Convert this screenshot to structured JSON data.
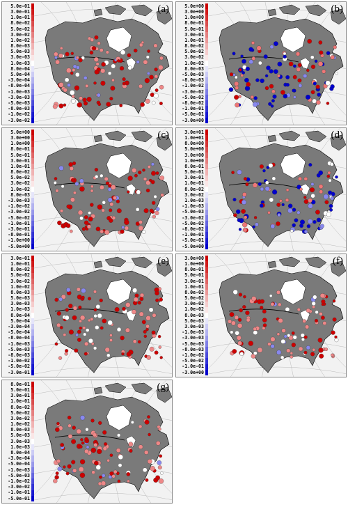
{
  "panels": [
    {
      "id": "a",
      "tag": "(a)",
      "legend": [
        "5.0e-01",
        "3.0e-01",
        "1.0e-01",
        "8.0e-02",
        "5.0e-02",
        "3.0e-02",
        "1.0e-02",
        "8.0e-03",
        "5.0e-03",
        "3.0e-03",
        "1.0e-03",
        "8.0e-04",
        "5.0e-04",
        "-3.0e-04",
        "-8.0e-04",
        "-1.0e-03",
        "-3.0e-03",
        "-5.0e-03",
        "-8.0e-03",
        "-1.0e-02",
        "-3.0e-02"
      ]
    },
    {
      "id": "b",
      "tag": "(b)",
      "legend": [
        "5.0e+00",
        "3.0e+00",
        "1.0e+00",
        "8.0e-01",
        "5.0e-01",
        "3.0e-01",
        "1.0e-01",
        "8.0e-02",
        "5.0e-02",
        "3.0e-02",
        "1.0e-02",
        "8.0e-03",
        "-5.0e-03",
        "-8.0e-03",
        "-1.0e-02",
        "-3.0e-02",
        "-5.0e-02",
        "-8.0e-02",
        "-1.0e-01",
        "-5.0e-01",
        "-3.0e+00"
      ]
    },
    {
      "id": "c",
      "tag": "(c)",
      "legend": [
        "5.0e+00",
        "3.0e+00",
        "1.0e+00",
        "8.0e-01",
        "5.0e-01",
        "3.0e-01",
        "1.0e-01",
        "8.0e-02",
        "5.0e-02",
        "3.0e-02",
        "1.0e-02",
        "8.0e-03",
        "-3.0e-03",
        "-1.0e-02",
        "-3.0e-02",
        "-5.0e-02",
        "-1.0e-01",
        "-3.0e-01",
        "-8.0e-01",
        "-1.0e+00",
        "-5.0e+00"
      ]
    },
    {
      "id": "d",
      "tag": "(d)",
      "legend": [
        "3.0e+01",
        "1.0e+01",
        "8.0e+00",
        "5.0e+00",
        "3.0e+00",
        "1.0e+00",
        "8.0e-01",
        "5.0e-01",
        "3.0e-01",
        "1.0e-01",
        "8.0e-02",
        "3.0e-02",
        "1.0e-03",
        "-1.0e-03",
        "-5.0e-03",
        "-3.0e-02",
        "-5.0e-02",
        "-8.0e-02",
        "-1.0e-01",
        "-5.0e-01",
        "-5.0e+00"
      ]
    },
    {
      "id": "e",
      "tag": "(e)",
      "legend": [
        "3.0e-01",
        "1.0e-01",
        "8.0e-02",
        "5.0e-02",
        "3.0e-02",
        "1.0e-02",
        "8.0e-03",
        "5.0e-03",
        "3.0e-03",
        "1.0e-03",
        "8.0e-04",
        "5.0e-04",
        "-3.0e-04",
        "-5.0e-04",
        "-8.0e-04",
        "-1.0e-03",
        "-5.0e-03",
        "-8.0e-03",
        "-1.0e-02",
        "-5.0e-02",
        "-3.0e-01"
      ]
    },
    {
      "id": "f",
      "tag": "(f)",
      "legend": [
        "3.0e+00",
        "1.0e+00",
        "8.0e-01",
        "5.0e-01",
        "3.0e-01",
        "1.0e-01",
        "8.0e-02",
        "5.0e-02",
        "3.0e-02",
        "1.0e-02",
        "8.0e-03",
        "5.0e-03",
        "3.0e-03",
        "-1.0e-03",
        "-3.0e-03",
        "-5.0e-03",
        "-8.0e-03",
        "-1.0e-02",
        "-5.0e-02",
        "-1.0e-01",
        "-3.0e+00"
      ]
    },
    {
      "id": "g",
      "tag": "(g)",
      "legend": [
        "8.0e-01",
        "5.0e-01",
        "3.0e-01",
        "1.0e-01",
        "8.0e-02",
        "5.0e-02",
        "3.0e-02",
        "1.0e-02",
        "8.0e-03",
        "5.0e-03",
        "3.0e-03",
        "1.0e-03",
        "8.0e-04",
        "-3.0e-04",
        "-5.0e-04",
        "-1.0e-03",
        "-5.0e-03",
        "-1.0e-02",
        "-3.0e-02",
        "-1.0e-01",
        "-5.0e-01"
      ]
    }
  ],
  "colors": {
    "land": "#7a7a7a",
    "ocean": "#f2f2f2",
    "coast": "#000000",
    "positive": "#cc0000",
    "negative": "#0000cc",
    "neutral": "#ffffff"
  }
}
